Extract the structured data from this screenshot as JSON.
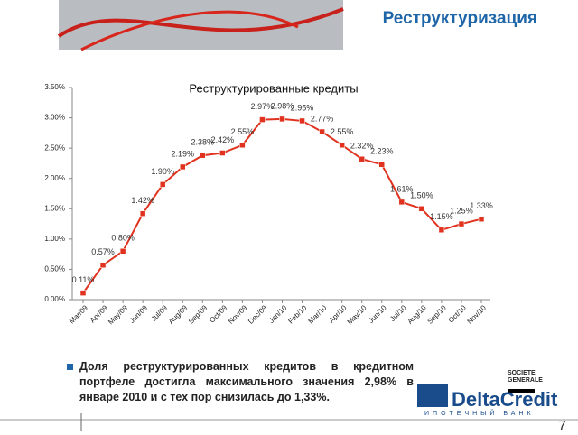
{
  "header": {
    "title": "Реструктуризация"
  },
  "chart_data": {
    "type": "line",
    "title": "Реструктурированные кредиты",
    "categories": [
      "Mar/09",
      "Apr/09",
      "May/09",
      "Jun/09",
      "Jul/09",
      "Aug/09",
      "Sep/09",
      "Oct/09",
      "Nov/09",
      "Dec/09",
      "Jan/10",
      "Feb/10",
      "Mar/10",
      "Apr/10",
      "May/10",
      "Jun/10",
      "Jul/10",
      "Aug/10",
      "Sep/10",
      "Oct/10",
      "Nov/10"
    ],
    "series": [
      {
        "name": "Реструктурированные кредиты",
        "color": "#e0321e",
        "values": [
          0.11,
          0.57,
          0.8,
          1.42,
          1.9,
          2.19,
          2.38,
          2.42,
          2.55,
          2.97,
          2.98,
          2.95,
          2.77,
          2.55,
          2.32,
          2.23,
          1.61,
          1.5,
          1.15,
          1.25,
          1.33
        ],
        "value_labels": [
          "0.11%",
          "0.57%",
          "0.80%",
          "1.42%",
          "1.90%",
          "2.19%",
          "2.38%",
          "2.42%",
          "2.55%",
          "2.97%",
          "2.98%",
          "2.95%",
          "2.77%",
          "2.55%",
          "2.32%",
          "2.23%",
          "1.61%",
          "1.50%",
          "1.15%",
          "1.25%",
          "1.33%"
        ]
      }
    ],
    "ylim": [
      0,
      3.5
    ],
    "yticks": [
      {
        "value": 0,
        "label": "0.00%"
      },
      {
        "value": 0.5,
        "label": "0.50%"
      },
      {
        "value": 1,
        "label": "1.00%"
      },
      {
        "value": 1.5,
        "label": "1.50%"
      },
      {
        "value": 2,
        "label": "2.00%"
      },
      {
        "value": 2.5,
        "label": "2.50%"
      },
      {
        "value": 3,
        "label": "3.00%"
      },
      {
        "value": 3.5,
        "label": "3.50%"
      }
    ]
  },
  "text": "Доля реструктурированных кредитов в кредитном портфеле достигла максимального значения 2,98% в январе 2010 и с тех пор снизилась до 1,33%.",
  "logos": {
    "societe_generale": "SOCIETE GENERALE",
    "deltacredit": "DeltaCredit",
    "deltacredit_sub": "ИПОТЕЧНЫЙ БАНК"
  },
  "page_number": "7"
}
